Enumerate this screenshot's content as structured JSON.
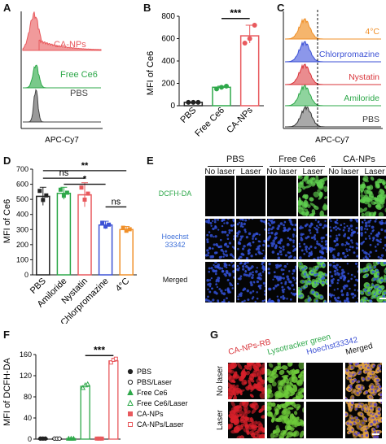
{
  "panels": {
    "A": {
      "label": "A",
      "xlabel": "APC-Cy7",
      "series": [
        {
          "name": "CA-NPs",
          "color": "#e8595d",
          "fill": "#f19a9b"
        },
        {
          "name": "Free Ce6",
          "color": "#2ea84a",
          "fill": "#79c98a"
        },
        {
          "name": "PBS",
          "color": "#444444",
          "fill": "#9a9a9a"
        }
      ]
    },
    "B": {
      "label": "B",
      "chart_type": "bar",
      "ylabel": "MFI of Ce6",
      "categories": [
        "PBS",
        "Free Ce6",
        "CA-NPs"
      ],
      "values": [
        30,
        165,
        625
      ],
      "points": [
        [
          30,
          30,
          30
        ],
        [
          150,
          165,
          175
        ],
        [
          560,
          600,
          720
        ]
      ],
      "colors": [
        "#222222",
        "#2ea84a",
        "#e8595d"
      ],
      "yticks": [
        "0",
        "200",
        "400",
        "600",
        "800"
      ],
      "ylim": [
        0,
        800
      ],
      "significance": "***"
    },
    "C": {
      "label": "C",
      "xlabel": "APC-Cy7",
      "series": [
        {
          "name": "4°C",
          "color": "#f0902a",
          "fill": "#f5b56d"
        },
        {
          "name": "Chlorpromazine",
          "color": "#3d52d5",
          "fill": "#8c97ea"
        },
        {
          "name": "Nystatin",
          "color": "#d9343a",
          "fill": "#ea8c8f"
        },
        {
          "name": "Amiloride",
          "color": "#2ea84a",
          "fill": "#8fd49e"
        },
        {
          "name": "PBS",
          "color": "#333333",
          "fill": "#a9a9a9"
        }
      ]
    },
    "D": {
      "label": "D",
      "chart_type": "bar",
      "ylabel": "MFI of Ce6",
      "categories": [
        "PBS",
        "Amiloride",
        "Nystatin",
        "Chlorpromazine",
        "4°C"
      ],
      "values": [
        520,
        540,
        530,
        330,
        300
      ],
      "errors": [
        60,
        40,
        80,
        25,
        20
      ],
      "colors": [
        "#222222",
        "#2ea84a",
        "#e8595d",
        "#3d52d5",
        "#f0902a"
      ],
      "yticks": [
        "0",
        "100",
        "200",
        "300",
        "400",
        "500",
        "600",
        "700"
      ],
      "ylim": [
        0,
        700
      ],
      "sig": [
        {
          "from": 0,
          "to": 4,
          "text": "**"
        },
        {
          "from": 0,
          "to": 2,
          "text": "ns"
        },
        {
          "from": 1,
          "to": 3,
          "text": "*"
        },
        {
          "from": 3,
          "to": 4,
          "text": "ns"
        }
      ]
    },
    "E": {
      "label": "E",
      "groups": [
        "PBS",
        "Free Ce6",
        "CA-NPs"
      ],
      "conditions": [
        "No laser",
        "Laser",
        "No laser",
        "Laser",
        "No laser",
        "Laser"
      ],
      "rows": [
        {
          "name": "DCFH-DA",
          "color": "#2ea84a"
        },
        {
          "name": "Hoechst\n33342",
          "color": "#3d6fd9"
        },
        {
          "name": "Merged",
          "color": "#111111"
        }
      ]
    },
    "F": {
      "label": "F",
      "chart_type": "bar",
      "ylabel": "MFI of DCFH-DA",
      "yticks": [
        "0",
        "40",
        "80",
        "120",
        "160"
      ],
      "ylim": [
        0,
        160
      ],
      "values": [
        1,
        1,
        1,
        100,
        1,
        148
      ],
      "legend": [
        {
          "name": "PBS",
          "color": "#222222",
          "marker": "dot-filled"
        },
        {
          "name": "PBS/Laser",
          "color": "#222222",
          "marker": "dot-open"
        },
        {
          "name": "Free Ce6",
          "color": "#2ea84a",
          "marker": "tri-filled"
        },
        {
          "name": "Free Ce6/Laser",
          "color": "#2ea84a",
          "marker": "tri-open"
        },
        {
          "name": "CA-NPs",
          "color": "#e8595d",
          "marker": "sq-filled"
        },
        {
          "name": "CA-NPs/Laser",
          "color": "#e8595d",
          "marker": "sq-open"
        }
      ],
      "significance": "***"
    },
    "G": {
      "label": "G",
      "columns": [
        {
          "name": "CA-NPs-RB",
          "color": "#d9343a"
        },
        {
          "name": "Lysotracker green",
          "color": "#2ea84a"
        },
        {
          "name": "Hoechst33342",
          "color": "#3d52d5"
        },
        {
          "name": "Merged",
          "color": "#111111"
        }
      ],
      "rows": [
        "No laser",
        "Laser"
      ]
    }
  }
}
